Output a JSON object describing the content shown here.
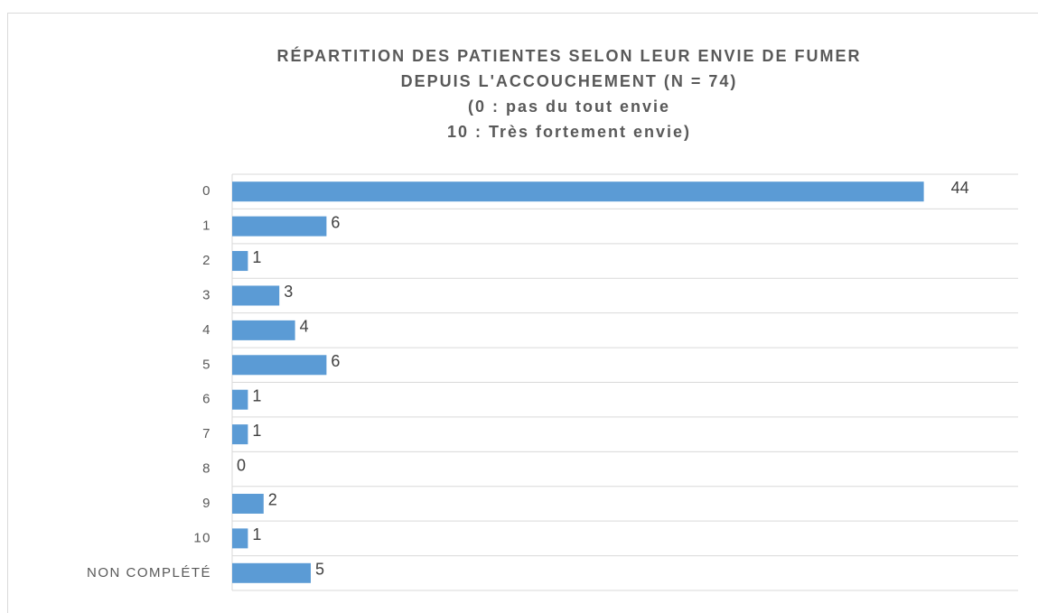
{
  "chart_data": {
    "type": "bar",
    "orientation": "horizontal",
    "title": [
      "RÉPARTITION DES PATIENTES SELON LEUR ENVIE DE FUMER",
      "DEPUIS L'ACCOUCHEMENT (N = 74)",
      "(0 : pas du tout envie",
      "10 : Très fortement envie)"
    ],
    "categories": [
      "0",
      "1",
      "2",
      "3",
      "4",
      "5",
      "6",
      "7",
      "8",
      "9",
      "10",
      "NON COMPLÉTÉ"
    ],
    "values": [
      44,
      6,
      1,
      3,
      4,
      6,
      1,
      1,
      0,
      2,
      1,
      5
    ],
    "color": "#5b9bd5",
    "xlim": [
      0,
      50
    ]
  }
}
